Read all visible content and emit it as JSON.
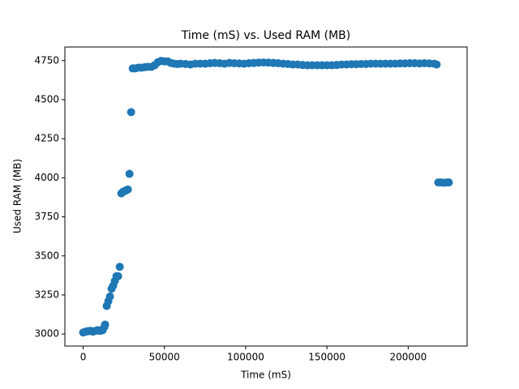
{
  "chart_data": {
    "type": "scatter",
    "title": "Time (mS) vs. Used RAM (MB)",
    "xlabel": "Time (mS)",
    "ylabel": "Used RAM (MB)",
    "color": "#1f77b4",
    "xlim": [
      -11250,
      236250
    ],
    "xticks": [
      0,
      50000,
      100000,
      150000,
      200000
    ],
    "ylim": [
      2923,
      4837
    ],
    "yticks": [
      3000,
      3250,
      3500,
      3750,
      4000,
      4250,
      4500,
      4750
    ],
    "x": [
      0,
      1500,
      3000,
      4500,
      6000,
      7500,
      9000,
      10500,
      12000,
      13000,
      13500,
      14500,
      15500,
      16500,
      17500,
      18500,
      19500,
      20500,
      21500,
      22500,
      23500,
      24500,
      25500,
      26500,
      27500,
      28500,
      29500,
      30500,
      32000,
      34000,
      36000,
      38000,
      40000,
      42000,
      44000,
      46000,
      48000,
      50000,
      52000,
      54000,
      56000,
      58000,
      60000,
      63000,
      66000,
      69000,
      72000,
      75000,
      78000,
      81000,
      84000,
      87000,
      90000,
      93000,
      96000,
      99000,
      102000,
      105000,
      108000,
      111000,
      114000,
      117000,
      120000,
      123000,
      126000,
      129000,
      132000,
      135000,
      138000,
      141000,
      144000,
      147000,
      150000,
      153000,
      156000,
      159000,
      162000,
      165000,
      168000,
      171000,
      174000,
      177000,
      180000,
      183000,
      186000,
      189000,
      192000,
      195000,
      198000,
      201000,
      204000,
      207000,
      210000,
      213000,
      216000,
      217500,
      218500,
      220000,
      222000,
      224000,
      225000
    ],
    "values": [
      3010,
      3015,
      3018,
      3020,
      3015,
      3020,
      3025,
      3020,
      3025,
      3045,
      3060,
      3180,
      3210,
      3240,
      3290,
      3310,
      3340,
      3370,
      3370,
      3430,
      3900,
      3910,
      3915,
      3920,
      3925,
      4025,
      4420,
      4700,
      4700,
      4705,
      4705,
      4708,
      4710,
      4710,
      4720,
      4740,
      4748,
      4745,
      4745,
      4735,
      4730,
      4728,
      4730,
      4728,
      4725,
      4730,
      4730,
      4730,
      4733,
      4735,
      4733,
      4730,
      4735,
      4733,
      4732,
      4730,
      4733,
      4735,
      4737,
      4738,
      4737,
      4735,
      4733,
      4730,
      4728,
      4725,
      4725,
      4722,
      4720,
      4720,
      4720,
      4720,
      4720,
      4720,
      4722,
      4725,
      4725,
      4727,
      4727,
      4728,
      4728,
      4730,
      4730,
      4730,
      4730,
      4730,
      4730,
      4732,
      4732,
      4733,
      4733,
      4732,
      4733,
      4732,
      4730,
      4725,
      3970,
      3970,
      3968,
      3970,
      3970
    ]
  }
}
